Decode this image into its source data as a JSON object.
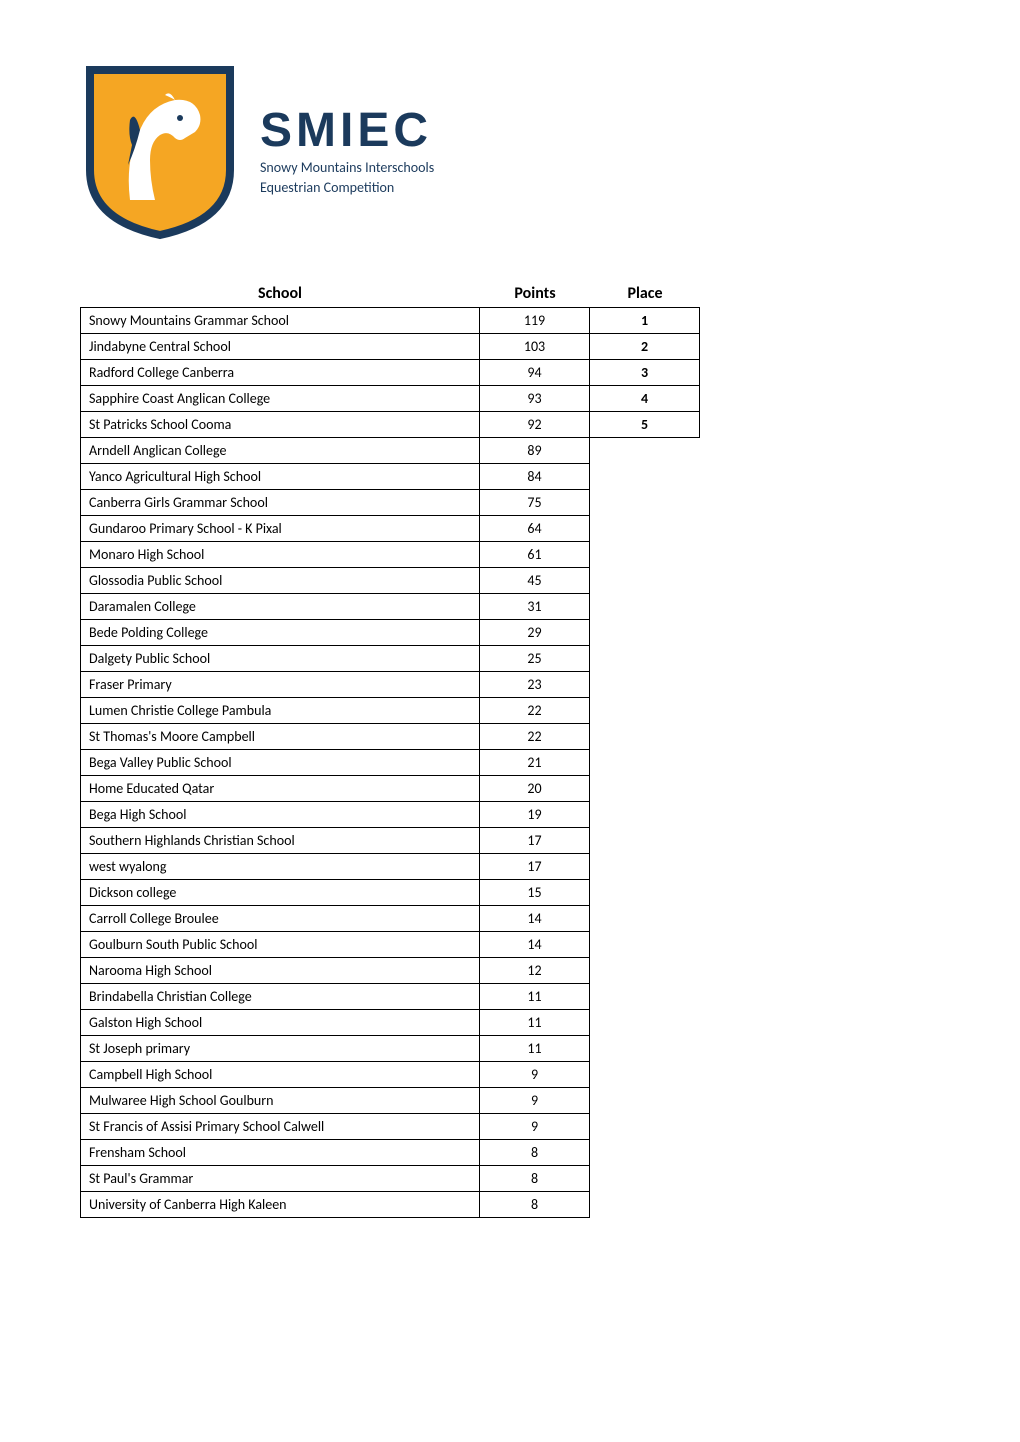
{
  "logo": {
    "acronym": "SMIEC",
    "subtitle_line1": "Snowy Mountains Interschools",
    "subtitle_line2": "Equestrian Competition",
    "shield_bg": "#f5a623",
    "shield_stroke": "#1b3a5c",
    "horse_color": "#ffffff",
    "text_color": "#1b3a5c"
  },
  "table": {
    "headers": {
      "school": "School",
      "points": "Points",
      "place": "Place"
    },
    "rows": [
      {
        "school": "Snowy Mountains Grammar School",
        "points": "119",
        "place": "1"
      },
      {
        "school": "Jindabyne Central School",
        "points": "103",
        "place": "2"
      },
      {
        "school": "Radford College Canberra",
        "points": "94",
        "place": "3"
      },
      {
        "school": "Sapphire Coast Anglican College",
        "points": "93",
        "place": "4"
      },
      {
        "school": "St Patricks School Cooma",
        "points": "92",
        "place": "5"
      },
      {
        "school": "Arndell Anglican College",
        "points": "89",
        "place": ""
      },
      {
        "school": "Yanco Agricultural High School",
        "points": "84",
        "place": ""
      },
      {
        "school": "Canberra Girls Grammar School",
        "points": "75",
        "place": ""
      },
      {
        "school": "Gundaroo Primary School - K Pixal",
        "points": "64",
        "place": ""
      },
      {
        "school": "Monaro High School",
        "points": "61",
        "place": ""
      },
      {
        "school": "Glossodia Public School",
        "points": "45",
        "place": ""
      },
      {
        "school": "Daramalen College",
        "points": "31",
        "place": ""
      },
      {
        "school": "Bede Polding College",
        "points": "29",
        "place": ""
      },
      {
        "school": "Dalgety Public School",
        "points": "25",
        "place": ""
      },
      {
        "school": "Fraser Primary",
        "points": "23",
        "place": ""
      },
      {
        "school": "Lumen Christie College Pambula",
        "points": "22",
        "place": ""
      },
      {
        "school": "St Thomas's Moore Campbell",
        "points": "22",
        "place": ""
      },
      {
        "school": "Bega Valley Public School",
        "points": "21",
        "place": ""
      },
      {
        "school": "Home Educated Qatar",
        "points": "20",
        "place": ""
      },
      {
        "school": "Bega High School",
        "points": "19",
        "place": ""
      },
      {
        "school": "Southern Highlands Christian School",
        "points": "17",
        "place": ""
      },
      {
        "school": "west wyalong",
        "points": "17",
        "place": ""
      },
      {
        "school": "Dickson college",
        "points": "15",
        "place": ""
      },
      {
        "school": "Carroll College Broulee",
        "points": "14",
        "place": ""
      },
      {
        "school": "Goulburn South Public School",
        "points": "14",
        "place": ""
      },
      {
        "school": "Narooma High School",
        "points": "12",
        "place": ""
      },
      {
        "school": "Brindabella Christian College",
        "points": "11",
        "place": ""
      },
      {
        "school": "Galston High School",
        "points": "11",
        "place": ""
      },
      {
        "school": "St Joseph primary",
        "points": "11",
        "place": ""
      },
      {
        "school": "Campbell High School",
        "points": "9",
        "place": ""
      },
      {
        "school": "Mulwaree High School Goulburn",
        "points": "9",
        "place": ""
      },
      {
        "school": "St Francis of Assisi Primary School Calwell",
        "points": "9",
        "place": ""
      },
      {
        "school": "Frensham School",
        "points": "8",
        "place": ""
      },
      {
        "school": "St Paul's Grammar",
        "points": "8",
        "place": ""
      },
      {
        "school": "University of Canberra High Kaleen",
        "points": "8",
        "place": ""
      }
    ]
  }
}
